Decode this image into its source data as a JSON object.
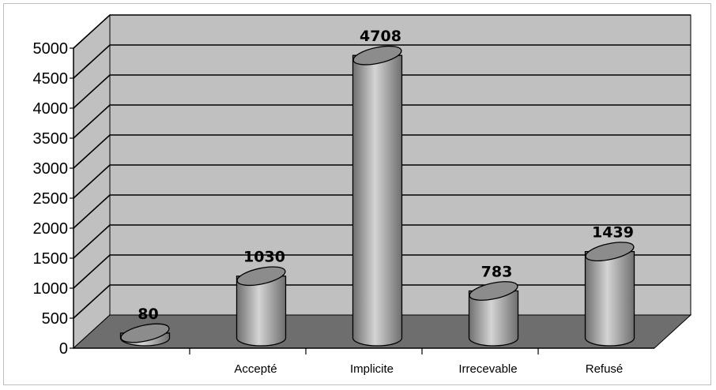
{
  "chart_data": {
    "type": "bar",
    "categories": [
      "",
      "Accepté",
      "Implicite",
      "Irrecevable",
      "Refusé"
    ],
    "values": [
      80,
      1030,
      4708,
      783,
      1439
    ],
    "data_labels": [
      "80",
      "1030",
      "4708",
      "783",
      "1439"
    ],
    "title": "",
    "xlabel": "",
    "ylabel": "",
    "ylim": [
      0,
      5000
    ],
    "yticks": [
      "0",
      "500",
      "1000",
      "1500",
      "2000",
      "2500",
      "3000",
      "3500",
      "4000",
      "4500",
      "5000"
    ],
    "grid": true,
    "legend": "none",
    "style": "3d-cylinder",
    "colors": {
      "wall": "#c0c0c0",
      "floor": "#6e6e6e",
      "gridline": "#000000",
      "cylinder_dark": "#6f6f6f",
      "cylinder_light": "#d4d4d4",
      "cylinder_top": "#8c8c8c"
    }
  }
}
